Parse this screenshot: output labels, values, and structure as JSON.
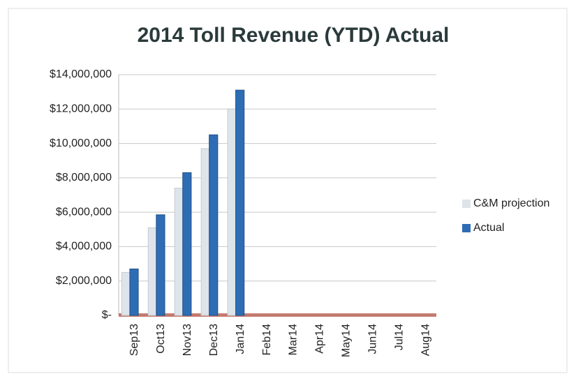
{
  "chart_data": {
    "type": "bar",
    "title": "2014 Toll Revenue (YTD) Actual",
    "categories": [
      "Sep13",
      "Oct13",
      "Nov13",
      "Dec13",
      "Jan14",
      "Feb14",
      "Mar14",
      "Apr14",
      "May14",
      "Jun14",
      "Jul14",
      "Aug14"
    ],
    "series": [
      {
        "name": "C&M projection",
        "color": "#dde4ea",
        "values": [
          2500000,
          5100000,
          7400000,
          9700000,
          12000000,
          null,
          null,
          null,
          null,
          null,
          null,
          null
        ]
      },
      {
        "name": "Actual",
        "color": "#2e6db4",
        "values": [
          2700000,
          5850000,
          8300000,
          10500000,
          13100000,
          null,
          null,
          null,
          null,
          null,
          null,
          null
        ]
      }
    ],
    "ylim": [
      0,
      14000000
    ],
    "yticks": [
      {
        "value": 0,
        "label": "$-"
      },
      {
        "value": 2000000,
        "label": "$2,000,000"
      },
      {
        "value": 4000000,
        "label": "$4,000,000"
      },
      {
        "value": 6000000,
        "label": "$6,000,000"
      },
      {
        "value": 8000000,
        "label": "$8,000,000"
      },
      {
        "value": 10000000,
        "label": "$10,000,000"
      },
      {
        "value": 12000000,
        "label": "$12,000,000"
      },
      {
        "value": 14000000,
        "label": "$14,000,000"
      }
    ],
    "grid": true,
    "legend": "right"
  }
}
